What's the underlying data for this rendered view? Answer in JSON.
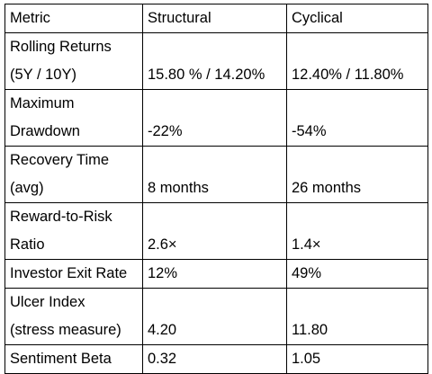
{
  "table": {
    "headers": [
      "Metric",
      "Structural",
      "Cyclical"
    ],
    "rows": [
      {
        "metric": [
          "Rolling Returns",
          "(5Y / 10Y)"
        ],
        "structural": "15.80 % / 14.20%",
        "cyclical": "12.40% / 11.80%"
      },
      {
        "metric": [
          "Maximum",
          "Drawdown"
        ],
        "structural": "-22%",
        "cyclical": "-54%"
      },
      {
        "metric": [
          "Recovery Time",
          "(avg)"
        ],
        "structural": "8 months",
        "cyclical": "26 months"
      },
      {
        "metric": [
          "Reward-to-Risk",
          "Ratio"
        ],
        "structural": "2.6×",
        "cyclical": "1.4×"
      },
      {
        "metric": [
          "Investor Exit Rate"
        ],
        "structural": "12%",
        "cyclical": "49%"
      },
      {
        "metric": [
          "Ulcer Index",
          "(stress measure)"
        ],
        "structural": "4.20",
        "cyclical": "11.80"
      },
      {
        "metric": [
          "Sentiment Beta"
        ],
        "structural": "0.32",
        "cyclical": "1.05"
      }
    ]
  }
}
